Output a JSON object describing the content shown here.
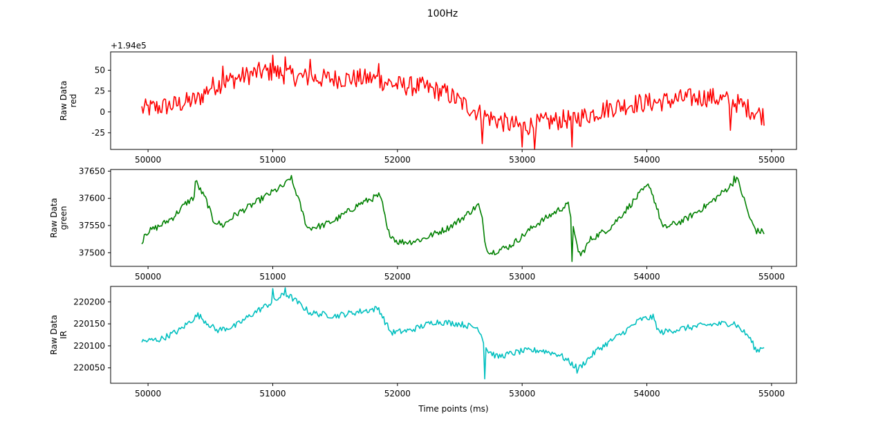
{
  "figure": {
    "title": "100Hz",
    "xlabel": "Time points (ms)"
  },
  "chart_data": [
    {
      "type": "line",
      "ylabel_line1": "Raw Data",
      "ylabel_line2": "red",
      "offset_text": "+1.94e5",
      "xlim": [
        49700,
        55200
      ],
      "ylim": [
        -45,
        72
      ],
      "xticks": [
        50000,
        51000,
        52000,
        53000,
        54000,
        55000
      ],
      "yticks": [
        -25,
        0,
        25,
        50
      ],
      "grid": false,
      "series": [
        {
          "color": "#ff0000",
          "x_start": 49950,
          "x_step": 10,
          "anchors": [
            [
              49950,
              3
            ],
            [
              50050,
              5
            ],
            [
              50200,
              8
            ],
            [
              50400,
              15
            ],
            [
              50500,
              30
            ],
            [
              50700,
              40
            ],
            [
              50900,
              48
            ],
            [
              51000,
              48
            ],
            [
              51200,
              42
            ],
            [
              51400,
              40
            ],
            [
              51600,
              40
            ],
            [
              51800,
              40
            ],
            [
              52000,
              32
            ],
            [
              52200,
              30
            ],
            [
              52400,
              22
            ],
            [
              52500,
              12
            ],
            [
              52700,
              -5
            ],
            [
              52900,
              -15
            ],
            [
              53000,
              -18
            ],
            [
              53200,
              -12
            ],
            [
              53400,
              -8
            ],
            [
              53500,
              -5
            ],
            [
              53700,
              5
            ],
            [
              53900,
              10
            ],
            [
              54100,
              12
            ],
            [
              54300,
              16
            ],
            [
              54500,
              18
            ],
            [
              54700,
              12
            ],
            [
              54800,
              5
            ],
            [
              54940,
              -5
            ]
          ],
          "noise": 12,
          "spikes": [
            [
              52680,
              -38
            ],
            [
              53000,
              -42
            ],
            [
              53100,
              -45
            ],
            [
              53400,
              -42
            ],
            [
              54670,
              -22
            ],
            [
              50600,
              55
            ],
            [
              51000,
              68
            ],
            [
              51100,
              66
            ],
            [
              51300,
              63
            ],
            [
              51850,
              58
            ]
          ]
        }
      ]
    },
    {
      "type": "line",
      "ylabel_line1": "Raw Data",
      "ylabel_line2": "green",
      "xlim": [
        49700,
        55200
      ],
      "ylim": [
        37475,
        37653
      ],
      "xticks": [
        50000,
        51000,
        52000,
        53000,
        54000,
        55000
      ],
      "yticks": [
        37500,
        37550,
        37600,
        37650
      ],
      "grid": false,
      "series": [
        {
          "color": "#008000",
          "x_start": 49950,
          "x_step": 10,
          "anchors": [
            [
              49950,
              37515
            ],
            [
              49970,
              37535
            ],
            [
              50100,
              37550
            ],
            [
              50200,
              37565
            ],
            [
              50300,
              37590
            ],
            [
              50370,
              37602
            ],
            [
              50380,
              37632
            ],
            [
              50420,
              37615
            ],
            [
              50470,
              37595
            ],
            [
              50520,
              37560
            ],
            [
              50600,
              37550
            ],
            [
              50700,
              37570
            ],
            [
              50850,
              37590
            ],
            [
              50950,
              37605
            ],
            [
              51100,
              37625
            ],
            [
              51140,
              37638
            ],
            [
              51190,
              37610
            ],
            [
              51250,
              37565
            ],
            [
              51280,
              37545
            ],
            [
              51400,
              37550
            ],
            [
              51500,
              37560
            ],
            [
              51600,
              37575
            ],
            [
              51700,
              37590
            ],
            [
              51850,
              37605
            ],
            [
              51880,
              37590
            ],
            [
              51920,
              37540
            ],
            [
              52000,
              37520
            ],
            [
              52100,
              37520
            ],
            [
              52200,
              37525
            ],
            [
              52300,
              37535
            ],
            [
              52400,
              37545
            ],
            [
              52500,
              37560
            ],
            [
              52650,
              37588
            ],
            [
              52680,
              37560
            ],
            [
              52710,
              37510
            ],
            [
              52750,
              37500
            ],
            [
              52900,
              37512
            ],
            [
              53000,
              37530
            ],
            [
              53100,
              37550
            ],
            [
              53300,
              37580
            ],
            [
              53370,
              37588
            ],
            [
              53400,
              37560
            ],
            [
              53420,
              37530
            ],
            [
              53450,
              37505
            ],
            [
              53470,
              37495
            ],
            [
              53550,
              37525
            ],
            [
              53700,
              37545
            ],
            [
              53800,
              37570
            ],
            [
              53950,
              37610
            ],
            [
              54020,
              37625
            ],
            [
              54070,
              37590
            ],
            [
              54130,
              37545
            ],
            [
              54300,
              37560
            ],
            [
              54500,
              37590
            ],
            [
              54680,
              37625
            ],
            [
              54720,
              37638
            ],
            [
              54770,
              37605
            ],
            [
              54830,
              37560
            ],
            [
              54880,
              37540
            ],
            [
              54940,
              37538
            ]
          ],
          "noise": 6,
          "spikes": [
            [
              53400,
              37484
            ],
            [
              54700,
              37641
            ],
            [
              51150,
              37642
            ]
          ]
        }
      ]
    },
    {
      "type": "line",
      "ylabel_line1": "Raw Data",
      "ylabel_line2": "IR",
      "xlim": [
        49700,
        55200
      ],
      "ylim": [
        220015,
        220235
      ],
      "xticks": [
        50000,
        51000,
        52000,
        53000,
        54000,
        55000
      ],
      "yticks": [
        220050,
        220100,
        220150,
        220200
      ],
      "grid": false,
      "series": [
        {
          "color": "#00bfbf",
          "x_start": 49950,
          "x_step": 10,
          "anchors": [
            [
              49950,
              220110
            ],
            [
              50100,
              220115
            ],
            [
              50250,
              220135
            ],
            [
              50400,
              220170
            ],
            [
              50550,
              220135
            ],
            [
              50700,
              220145
            ],
            [
              50850,
              220175
            ],
            [
              51000,
              220200
            ],
            [
              51100,
              220218
            ],
            [
              51150,
              220210
            ],
            [
              51300,
              220175
            ],
            [
              51500,
              220168
            ],
            [
              51700,
              220178
            ],
            [
              51850,
              220185
            ],
            [
              51900,
              220155
            ],
            [
              51950,
              220130
            ],
            [
              52100,
              220135
            ],
            [
              52300,
              220155
            ],
            [
              52500,
              220150
            ],
            [
              52650,
              220140
            ],
            [
              52720,
              220090
            ],
            [
              52800,
              220075
            ],
            [
              53000,
              220088
            ],
            [
              53150,
              220090
            ],
            [
              53300,
              220080
            ],
            [
              53450,
              220048
            ],
            [
              53600,
              220090
            ],
            [
              53800,
              220128
            ],
            [
              53950,
              220160
            ],
            [
              54050,
              220165
            ],
            [
              54100,
              220130
            ],
            [
              54300,
              220140
            ],
            [
              54500,
              220148
            ],
            [
              54700,
              220152
            ],
            [
              54820,
              220120
            ],
            [
              54880,
              220088
            ],
            [
              54940,
              220100
            ]
          ],
          "noise": 7,
          "spikes": [
            [
              52700,
              220025
            ],
            [
              53440,
              220038
            ],
            [
              51000,
              220230
            ],
            [
              51100,
              220232
            ]
          ]
        }
      ]
    }
  ]
}
